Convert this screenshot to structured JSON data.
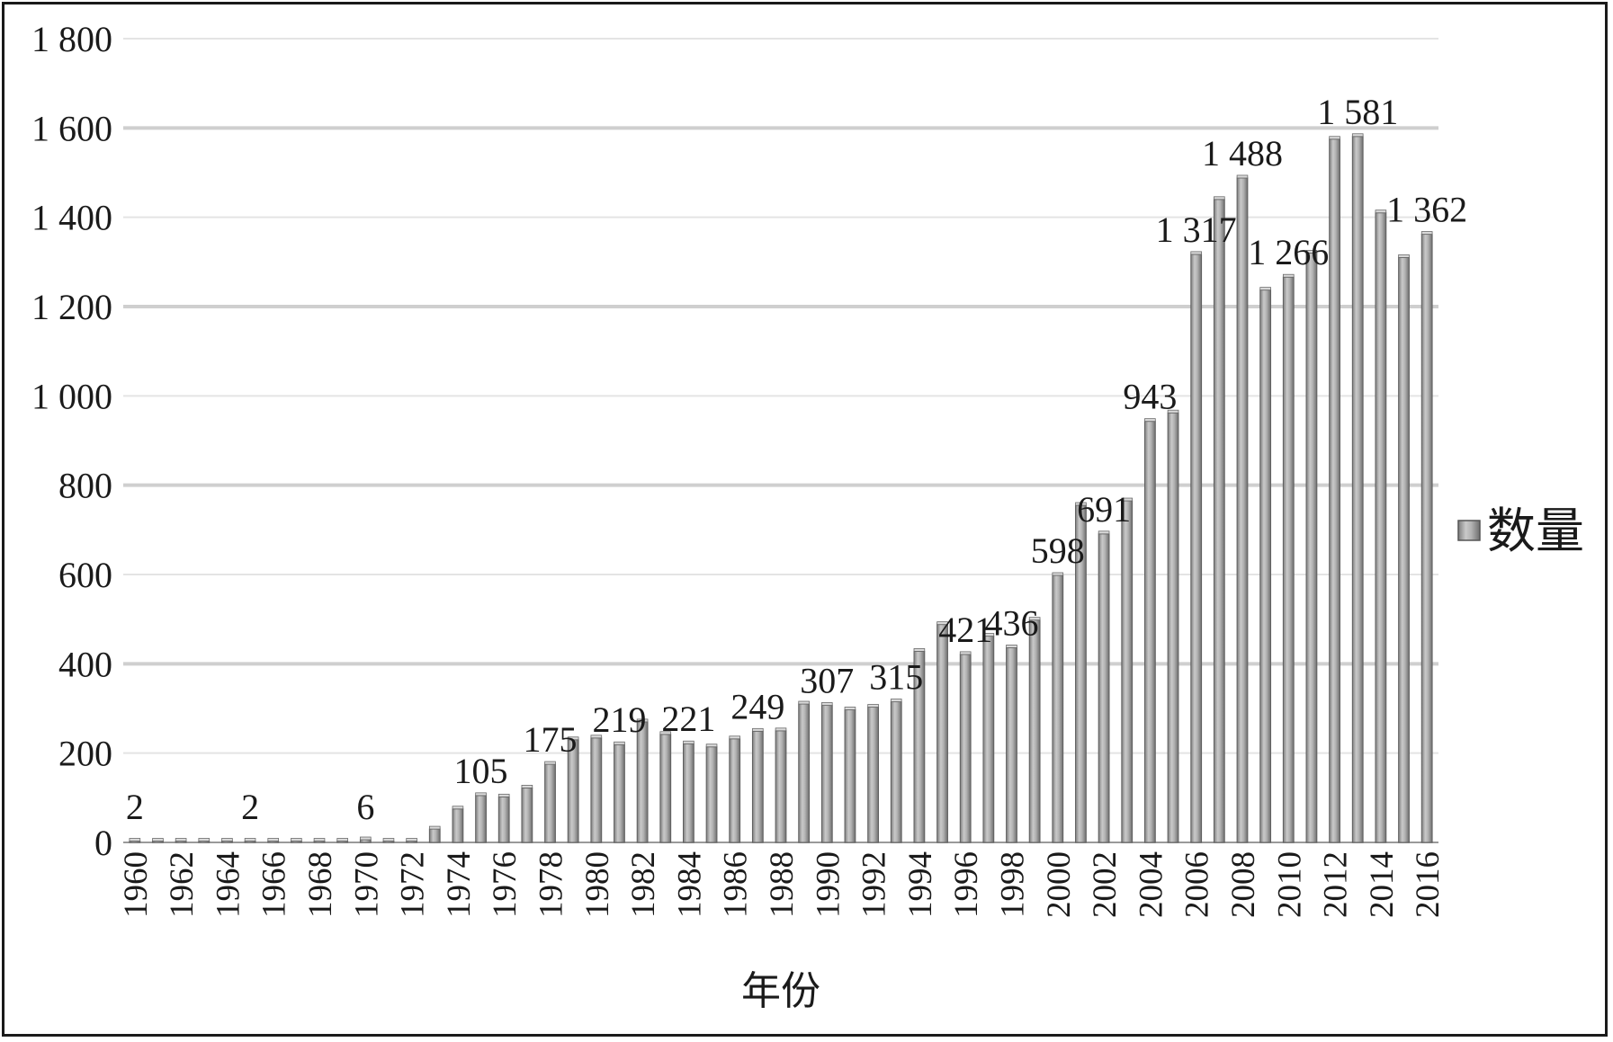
{
  "chart_data": {
    "type": "bar",
    "xlabel": "年份",
    "ylabel": "",
    "ylim": [
      0,
      1800
    ],
    "yticks": [
      "0",
      "200",
      "400",
      "600",
      "800",
      "1 000",
      "1 200",
      "1 400",
      "1 600",
      "1 800"
    ],
    "ytick_values": [
      0,
      200,
      400,
      600,
      800,
      1000,
      1200,
      1400,
      1600,
      1800
    ],
    "grid": true,
    "legend_position": "right",
    "series": [
      {
        "name": "数量",
        "color": "#a8a8a8",
        "values": [
          2,
          2,
          2,
          2,
          2,
          2,
          2,
          2,
          2,
          2,
          6,
          2,
          2,
          30,
          75,
          105,
          102,
          122,
          175,
          230,
          234,
          219,
          270,
          242,
          221,
          214,
          232,
          249,
          250,
          310,
          307,
          297,
          303,
          315,
          428,
          488,
          421,
          462,
          436,
          498,
          598,
          755,
          691,
          765,
          943,
          962,
          1317,
          1440,
          1488,
          1237,
          1266,
          1320,
          1575,
          1581,
          1410,
          1310,
          1362
        ]
      }
    ],
    "x": [
      1960,
      1961,
      1962,
      1963,
      1964,
      1965,
      1966,
      1967,
      1968,
      1969,
      1970,
      1971,
      1972,
      1973,
      1974,
      1975,
      1976,
      1977,
      1978,
      1979,
      1980,
      1981,
      1982,
      1983,
      1984,
      1985,
      1986,
      1987,
      1988,
      1989,
      1990,
      1991,
      1992,
      1993,
      1994,
      1995,
      1996,
      1997,
      1998,
      1999,
      2000,
      2001,
      2002,
      2003,
      2004,
      2005,
      2006,
      2007,
      2008,
      2009,
      2010,
      2011,
      2012,
      2013,
      2014,
      2015,
      2016
    ],
    "xticks": [
      "1960",
      "1962",
      "1964",
      "1966",
      "1968",
      "1970",
      "1972",
      "1974",
      "1976",
      "1978",
      "1980",
      "1982",
      "1984",
      "1986",
      "1988",
      "1990",
      "1992",
      "1994",
      "1996",
      "1998",
      "2000",
      "2002",
      "2004",
      "2006",
      "2008",
      "2010",
      "2012",
      "2014",
      "2016"
    ],
    "data_labels": [
      {
        "year": 1960,
        "text": "2"
      },
      {
        "year": 1965,
        "text": "2"
      },
      {
        "year": 1970,
        "text": "6"
      },
      {
        "year": 1975,
        "text": "105"
      },
      {
        "year": 1978,
        "text": "175"
      },
      {
        "year": 1981,
        "text": "219"
      },
      {
        "year": 1984,
        "text": "221"
      },
      {
        "year": 1987,
        "text": "249"
      },
      {
        "year": 1990,
        "text": "307"
      },
      {
        "year": 1993,
        "text": "315"
      },
      {
        "year": 1996,
        "text": "421"
      },
      {
        "year": 1998,
        "text": "436"
      },
      {
        "year": 2000,
        "text": "598"
      },
      {
        "year": 2002,
        "text": "691"
      },
      {
        "year": 2004,
        "text": "943"
      },
      {
        "year": 2006,
        "text": "1 317"
      },
      {
        "year": 2008,
        "text": "1 488"
      },
      {
        "year": 2010,
        "text": "1 266"
      },
      {
        "year": 2013,
        "text": "1 581"
      },
      {
        "year": 2016,
        "text": "1 362"
      }
    ]
  }
}
